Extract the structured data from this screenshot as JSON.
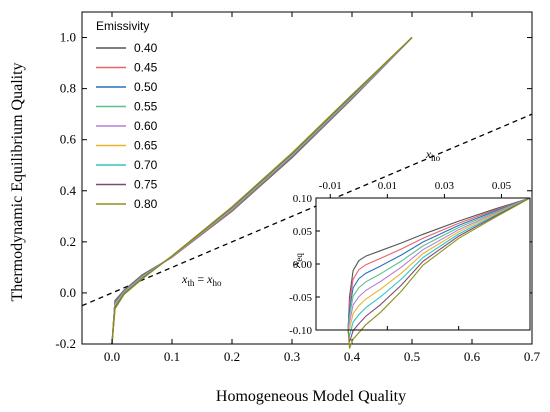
{
  "chart_data": {
    "type": "line",
    "xlabel": "Homogeneous Model Quality",
    "ylabel": "Thermodynamic Equilibrium Quality",
    "xlim": [
      -0.05,
      0.7
    ],
    "ylim": [
      -0.2,
      1.1
    ],
    "xticks": [
      "0.0",
      "0.1",
      "0.2",
      "0.3",
      "0.4",
      "0.5",
      "0.6",
      "0.7"
    ],
    "yticks": [
      "-0.2",
      "0.0",
      "0.2",
      "0.4",
      "0.6",
      "0.8",
      "1.0"
    ],
    "legend_title": "Emissivity",
    "legend_position": "top-left",
    "series": [
      {
        "name": "0.40",
        "color": "#555555",
        "x": [
          0.0,
          0.005,
          0.02,
          0.05,
          0.1,
          0.2,
          0.3,
          0.4,
          0.5
        ],
        "y": [
          -0.2,
          -0.03,
          0.01,
          0.07,
          0.14,
          0.32,
          0.53,
          0.76,
          1.0
        ]
      },
      {
        "name": "0.45",
        "color": "#e8636b",
        "x": [
          0.0,
          0.005,
          0.02,
          0.05,
          0.1,
          0.2,
          0.3,
          0.4,
          0.5
        ],
        "y": [
          -0.2,
          -0.034,
          0.008,
          0.067,
          0.14,
          0.322,
          0.533,
          0.762,
          1.0
        ]
      },
      {
        "name": "0.50",
        "color": "#2f6ebf",
        "x": [
          0.0,
          0.005,
          0.02,
          0.05,
          0.1,
          0.2,
          0.3,
          0.4,
          0.5
        ],
        "y": [
          -0.2,
          -0.038,
          0.006,
          0.065,
          0.142,
          0.325,
          0.536,
          0.764,
          1.0
        ]
      },
      {
        "name": "0.55",
        "color": "#5cc08a",
        "x": [
          0.0,
          0.005,
          0.02,
          0.05,
          0.1,
          0.2,
          0.3,
          0.4,
          0.5
        ],
        "y": [
          -0.2,
          -0.042,
          0.004,
          0.063,
          0.142,
          0.327,
          0.538,
          0.766,
          1.0
        ]
      },
      {
        "name": "0.60",
        "color": "#b57fd6",
        "x": [
          0.0,
          0.005,
          0.02,
          0.05,
          0.1,
          0.2,
          0.3,
          0.4,
          0.5
        ],
        "y": [
          -0.2,
          -0.046,
          0.002,
          0.061,
          0.143,
          0.329,
          0.54,
          0.768,
          1.0
        ]
      },
      {
        "name": "0.65",
        "color": "#e7b52a",
        "x": [
          0.0,
          0.005,
          0.02,
          0.05,
          0.1,
          0.2,
          0.3,
          0.4,
          0.5
        ],
        "y": [
          -0.2,
          -0.05,
          0.0,
          0.06,
          0.143,
          0.331,
          0.542,
          0.77,
          1.0
        ]
      },
      {
        "name": "0.70",
        "color": "#2ec4c4",
        "x": [
          0.0,
          0.005,
          0.02,
          0.05,
          0.1,
          0.2,
          0.3,
          0.4,
          0.5
        ],
        "y": [
          -0.2,
          -0.054,
          -0.002,
          0.058,
          0.144,
          0.333,
          0.544,
          0.772,
          1.0
        ]
      },
      {
        "name": "0.75",
        "color": "#7a4a74",
        "x": [
          0.0,
          0.005,
          0.02,
          0.05,
          0.1,
          0.2,
          0.3,
          0.4,
          0.5
        ],
        "y": [
          -0.2,
          -0.058,
          -0.004,
          0.056,
          0.144,
          0.335,
          0.546,
          0.774,
          1.0
        ]
      },
      {
        "name": "0.80",
        "color": "#8f8f1a",
        "x": [
          0.0,
          0.005,
          0.02,
          0.05,
          0.1,
          0.2,
          0.3,
          0.4,
          0.5
        ],
        "y": [
          -0.2,
          -0.062,
          -0.006,
          0.054,
          0.145,
          0.337,
          0.548,
          0.776,
          1.0
        ]
      }
    ],
    "reference_line": {
      "style": "dashed",
      "color": "#000000",
      "x": [
        -0.05,
        0.7
      ],
      "y": [
        -0.05,
        0.7
      ]
    },
    "annotation": {
      "main": "x",
      "sub1": "th",
      "eq": " = ",
      "main2": "x",
      "sub2": "ho",
      "x": 0.12,
      "y": 0.02
    },
    "inset": {
      "xlabel_main": "x",
      "xlabel_sub": "ho",
      "ylabel_main": "x",
      "ylabel_sub": "eq",
      "xlim": [
        -0.015,
        0.06
      ],
      "ylim": [
        -0.1,
        0.1
      ],
      "xticks": [
        "-0.01",
        "0.01",
        "0.03",
        "0.05"
      ],
      "bottom_ticks": [
        "0.4",
        "0.5",
        "0.6",
        "0.7"
      ],
      "yticks": [
        "-0.10",
        "-0.05",
        "0.00",
        "0.05",
        "0.10"
      ]
    }
  }
}
